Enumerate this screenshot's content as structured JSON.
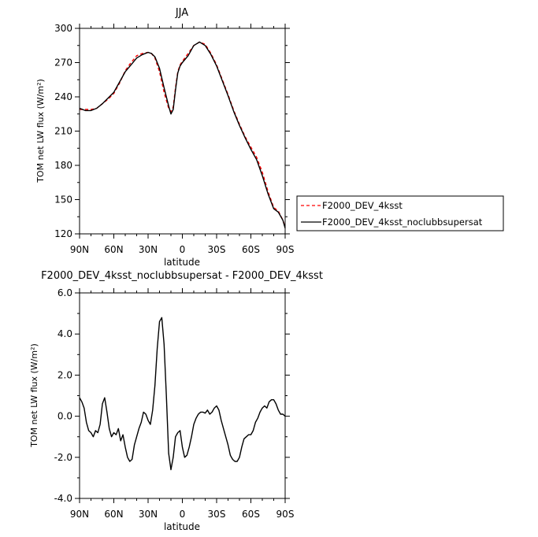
{
  "chart_data": [
    {
      "type": "line",
      "title": "JJA",
      "xlabel": "latitude",
      "ylabel": "TOM net LW flux (W/m²)",
      "x_tick_labels": [
        "90N",
        "60N",
        "30N",
        "0",
        "30S",
        "60S",
        "90S"
      ],
      "x_ticks": [
        90,
        60,
        30,
        0,
        -30,
        -60,
        -90
      ],
      "xlim": [
        90,
        -90
      ],
      "y_tick_labels": [
        "120",
        "150",
        "180",
        "210",
        "240",
        "270",
        "300"
      ],
      "y_ticks": [
        120,
        150,
        180,
        210,
        240,
        270,
        300
      ],
      "ylim": [
        120,
        300
      ],
      "legend": "right",
      "series": [
        {
          "name": "F2000_DEV_4ksst",
          "color": "#ff0000",
          "dash": "dashed",
          "x": [
            90,
            85,
            80,
            75,
            70,
            65,
            60,
            55,
            50,
            45,
            40,
            35,
            30,
            27,
            24,
            20,
            16,
            12,
            10,
            8,
            6,
            4,
            2,
            0,
            -5,
            -10,
            -15,
            -20,
            -25,
            -30,
            -35,
            -40,
            -45,
            -50,
            -55,
            -60,
            -65,
            -70,
            -75,
            -80,
            -84,
            -88,
            -90
          ],
          "y": [
            229,
            229,
            229,
            230,
            234,
            238,
            243,
            252,
            263,
            270,
            276,
            278,
            279,
            278,
            274,
            262,
            244,
            230,
            227,
            231,
            248,
            262,
            268,
            271,
            278,
            285,
            288,
            286,
            278,
            268,
            255,
            242,
            228,
            216,
            205,
            196,
            187,
            174,
            157,
            143,
            140,
            132,
            126
          ]
        },
        {
          "name": "F2000_DEV_4ksst_noclubbsupersat",
          "color": "#000000",
          "dash": "solid",
          "x": [
            90,
            85,
            80,
            75,
            70,
            65,
            60,
            55,
            50,
            45,
            40,
            35,
            30,
            27,
            24,
            20,
            16,
            12,
            10,
            8,
            6,
            4,
            2,
            0,
            -5,
            -10,
            -15,
            -20,
            -25,
            -30,
            -35,
            -40,
            -45,
            -50,
            -55,
            -60,
            -65,
            -70,
            -75,
            -80,
            -84,
            -88,
            -90
          ],
          "y": [
            230,
            228,
            228,
            230,
            234,
            239,
            244,
            253,
            262,
            268,
            274,
            277,
            279,
            278,
            275,
            265,
            248,
            232,
            225,
            229,
            246,
            261,
            267,
            270,
            276,
            285,
            288,
            285,
            277,
            267,
            254,
            241,
            227,
            215,
            204,
            194,
            185,
            171,
            155,
            142,
            139,
            132,
            125
          ]
        }
      ]
    },
    {
      "type": "line",
      "title": "F2000_DEV_4ksst_noclubbsupersat - F2000_DEV_4ksst",
      "xlabel": "latitude",
      "ylabel": "TOM net LW flux (W/m²)",
      "x_tick_labels": [
        "90N",
        "60N",
        "30N",
        "0",
        "30S",
        "60S",
        "90S"
      ],
      "x_ticks": [
        90,
        60,
        30,
        0,
        -30,
        -60,
        -90
      ],
      "xlim": [
        90,
        -90
      ],
      "y_tick_labels": [
        "-4.0",
        "-2.0",
        "0.0",
        "2.0",
        "4.0",
        "6.0"
      ],
      "y_ticks": [
        -4,
        -2,
        0,
        2,
        4,
        6
      ],
      "ylim": [
        -4,
        6
      ],
      "series": [
        {
          "color": "#000000",
          "x": [
            90,
            88,
            86,
            84,
            82,
            80,
            78,
            76,
            74,
            72,
            70,
            68,
            66,
            64,
            62,
            60,
            58,
            56,
            54,
            52,
            50,
            48,
            46,
            44,
            42,
            40,
            38,
            36,
            34,
            32,
            30,
            28,
            26,
            24,
            22,
            20,
            18,
            16,
            14,
            12,
            10,
            8,
            6,
            4,
            2,
            0,
            -2,
            -4,
            -6,
            -8,
            -10,
            -12,
            -14,
            -16,
            -18,
            -20,
            -22,
            -24,
            -26,
            -28,
            -30,
            -32,
            -34,
            -36,
            -38,
            -40,
            -42,
            -44,
            -46,
            -48,
            -50,
            -52,
            -54,
            -56,
            -58,
            -60,
            -62,
            -64,
            -66,
            -68,
            -70,
            -72,
            -74,
            -76,
            -78,
            -80,
            -82,
            -84,
            -86,
            -88,
            -90
          ],
          "y": [
            0.9,
            0.7,
            0.4,
            -0.3,
            -0.7,
            -0.8,
            -1.0,
            -0.7,
            -0.8,
            -0.4,
            0.6,
            0.9,
            0.2,
            -0.6,
            -1.0,
            -0.8,
            -0.9,
            -0.6,
            -1.2,
            -0.9,
            -1.5,
            -2.0,
            -2.2,
            -2.1,
            -1.4,
            -1.0,
            -0.6,
            -0.3,
            0.2,
            0.1,
            -0.2,
            -0.4,
            0.3,
            1.5,
            3.3,
            4.6,
            4.8,
            3.5,
            1.0,
            -1.8,
            -2.6,
            -2.0,
            -1.0,
            -0.8,
            -0.7,
            -1.5,
            -2.0,
            -1.9,
            -1.5,
            -1.0,
            -0.4,
            -0.1,
            0.1,
            0.2,
            0.2,
            0.15,
            0.3,
            0.1,
            0.2,
            0.4,
            0.5,
            0.3,
            -0.2,
            -0.6,
            -1.0,
            -1.4,
            -1.9,
            -2.1,
            -2.2,
            -2.2,
            -2.0,
            -1.5,
            -1.1,
            -1.0,
            -0.9,
            -0.9,
            -0.7,
            -0.3,
            -0.1,
            0.2,
            0.4,
            0.5,
            0.4,
            0.7,
            0.8,
            0.8,
            0.6,
            0.3,
            0.1,
            0.1,
            0.0
          ]
        }
      ]
    }
  ]
}
